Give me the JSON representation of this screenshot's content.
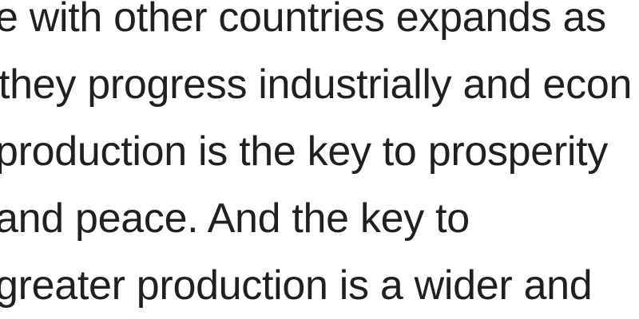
{
  "document": {
    "lines": [
      "e with other countries expands as",
      "they progress industrially and econ",
      "production is the key to prosperity",
      "and peace. And the key to",
      "greater production is a wider and"
    ]
  },
  "colors": {
    "text": "#202020",
    "background": "#ffffff"
  }
}
